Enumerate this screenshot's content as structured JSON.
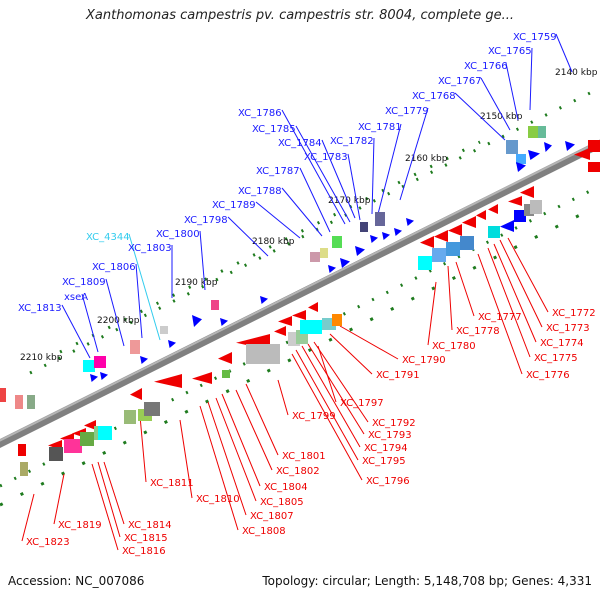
{
  "title": "Xanthomonas campestris pv. campestris str. 8004, complete ge...",
  "footer": {
    "accession": "Accession: NC_007086",
    "topology": "Topology: circular; Length: 5,148,708 bp; Genes: 4,331"
  },
  "colors": {
    "forward_label": "#1a1aff",
    "reverse_label": "#ee0000",
    "highlight_label": "#33ccee",
    "backbone": "#808080",
    "tick": "#1e7b1e"
  },
  "kbp_labels": [
    "2140 kbp",
    "2150 kbp",
    "2160 kbp",
    "2170 kbp",
    "2180 kbp",
    "2190 kbp",
    "2200 kbp",
    "2210 kbp"
  ],
  "forward_genes": [
    "XC_1759",
    "XC_1765",
    "XC_1766",
    "XC_1767",
    "XC_1768",
    "XC_1779",
    "XC_1781",
    "XC_1782",
    "XC_1783",
    "XC_1784",
    "XC_1785",
    "XC_1786",
    "XC_1787",
    "XC_1788",
    "XC_1789",
    "XC_1798",
    "XC_4344",
    "XC_1800",
    "XC_1803",
    "XC_1806",
    "XC_1809",
    "xseA",
    "XC_1813"
  ],
  "reverse_genes": [
    "XC_1772",
    "XC_1773",
    "XC_1774",
    "XC_1775",
    "XC_1776",
    "XC_1777",
    "XC_1778",
    "XC_1780",
    "XC_1790",
    "XC_1791",
    "XC_1792",
    "XC_1793",
    "XC_1794",
    "XC_1795",
    "XC_1796",
    "XC_1797",
    "XC_1799",
    "XC_1801",
    "XC_1802",
    "XC_1804",
    "XC_1805",
    "XC_1807",
    "XC_1808",
    "XC_1810",
    "XC_1811",
    "XC_1814",
    "XC_1815",
    "XC_1816",
    "XC_1819",
    "XC_1823"
  ]
}
